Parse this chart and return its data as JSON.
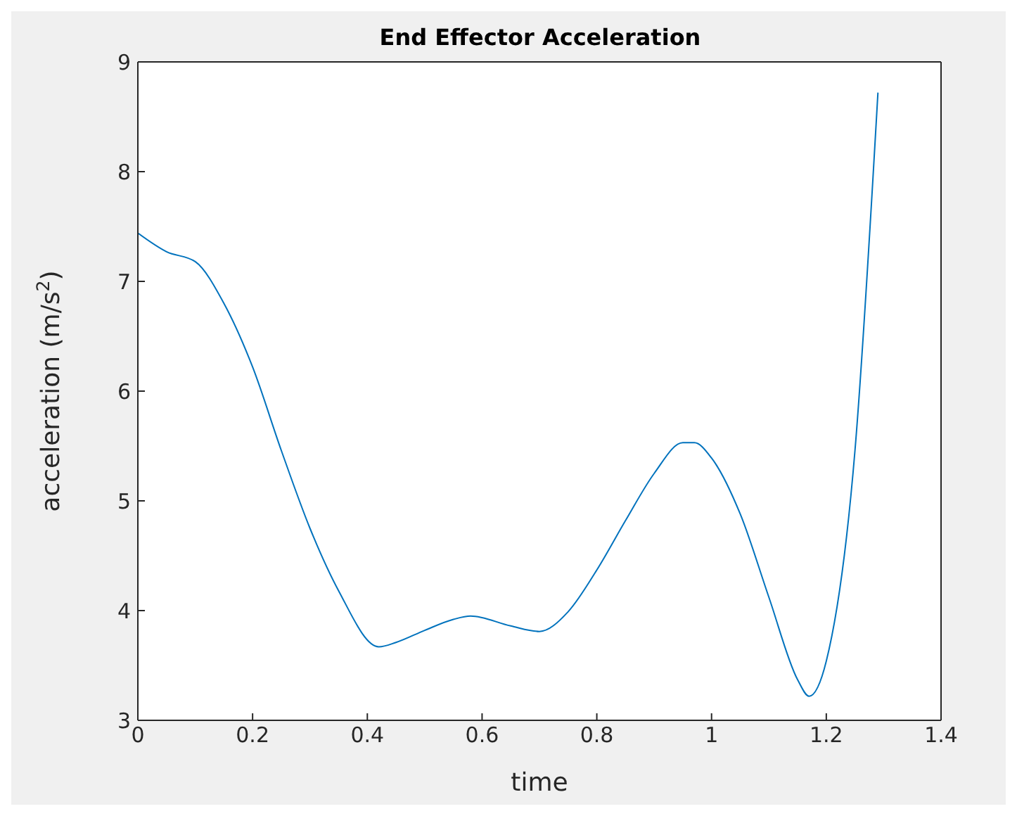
{
  "chart_data": {
    "type": "line",
    "title": "End Effector Acceleration",
    "xlabel": "time",
    "ylabel": "acceleration (m/s$^{2}$)",
    "x": [
      0,
      0.05,
      0.1,
      0.15,
      0.2,
      0.25,
      0.3,
      0.35,
      0.42,
      0.45,
      0.5,
      0.55,
      0.58,
      0.65,
      0.7,
      0.75,
      0.8,
      0.85,
      0.9,
      0.95,
      0.97,
      1.0,
      1.05,
      1.1,
      1.15,
      1.17,
      1.2,
      1.25,
      1.29
    ],
    "series": [
      {
        "color": "#0072bd",
        "values": [
          7.44,
          7.27,
          7.18,
          6.8,
          6.22,
          5.46,
          4.75,
          4.18,
          3.67,
          3.71,
          3.82,
          3.92,
          3.95,
          3.86,
          3.81,
          3.99,
          4.37,
          4.82,
          5.25,
          5.53,
          5.53,
          5.39,
          4.88,
          4.12,
          3.37,
          3.22,
          3.54,
          5.46,
          8.72
        ]
      }
    ],
    "xlim": [
      0,
      1.4
    ],
    "xticks": [
      0,
      0.2,
      0.4,
      0.6,
      0.8,
      1,
      1.2,
      1.4
    ],
    "ylim": [
      3,
      9
    ],
    "yticks": [
      3,
      4,
      5,
      6,
      7,
      8,
      9
    ],
    "grid": false,
    "marker": "none",
    "line_style": "solid"
  }
}
